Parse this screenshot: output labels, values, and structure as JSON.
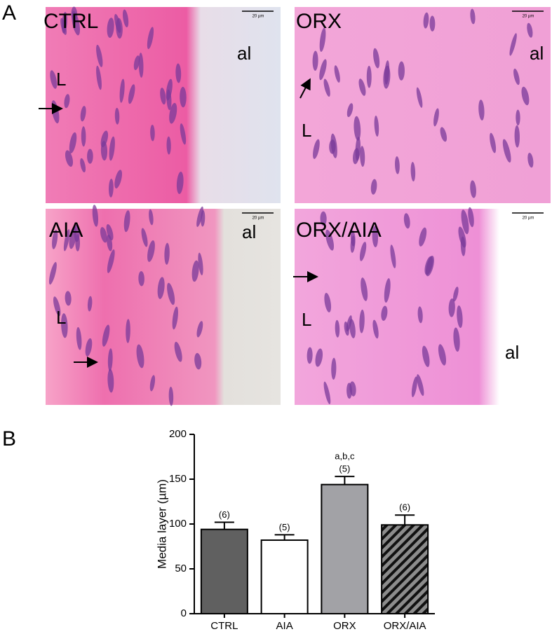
{
  "panel_a": {
    "letter": "A",
    "panels": [
      {
        "label": "CTRL",
        "lumen": "L",
        "adventitia": "al",
        "scale": "20 µm"
      },
      {
        "label": "ORX",
        "lumen": "L",
        "adventitia": "al",
        "scale": "20 µm"
      },
      {
        "label": "AIA",
        "lumen": "L",
        "adventitia": "al",
        "scale": "20 µm"
      },
      {
        "label": "ORX/AIA",
        "lumen": "L",
        "adventitia": "al",
        "scale": "20 µm"
      }
    ]
  },
  "chart_data": {
    "type": "bar",
    "panel": "B",
    "ylabel": "Media layer (µm)",
    "categories": [
      "CTRL",
      "AIA",
      "ORX",
      "ORX/AIA"
    ],
    "values": [
      94,
      82,
      144,
      99
    ],
    "errors": [
      8,
      6,
      9,
      11
    ],
    "colors": [
      "#606060",
      "#ffffff",
      "#a2a2a6",
      "#8c8c8c"
    ],
    "hatched": [
      false,
      false,
      false,
      true
    ],
    "n_labels": [
      "(6)",
      "(5)",
      "(5)",
      "(6)"
    ],
    "significance_labels": [
      null,
      null,
      "a,b,c",
      null
    ],
    "ylim": [
      0,
      200
    ],
    "yticks": [
      0,
      50,
      100,
      150,
      200
    ]
  }
}
